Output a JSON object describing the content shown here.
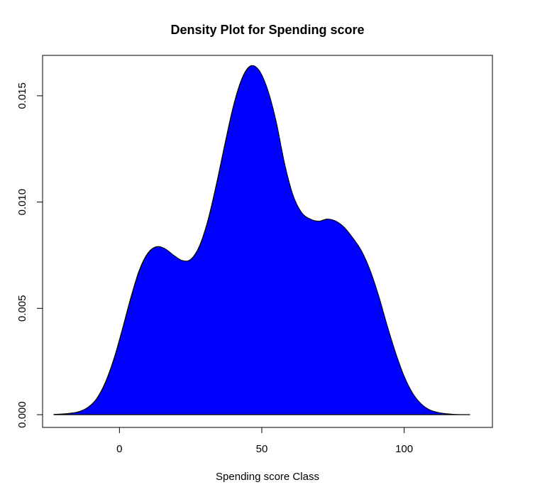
{
  "chart_data": {
    "type": "area",
    "title": "Density Plot for Spending score",
    "xlabel": "Spending score Class",
    "ylabel": "",
    "xlim": [
      -27,
      131
    ],
    "ylim": [
      -0.0006,
      0.0169
    ],
    "x_ticks": [
      0,
      50,
      100
    ],
    "y_ticks": [
      0.0,
      0.005,
      0.01,
      0.015
    ],
    "x_tick_labels": [
      "0",
      "50",
      "100"
    ],
    "y_tick_labels": [
      "0.000",
      "0.005",
      "0.010",
      "0.015"
    ],
    "fill_color": "#0000ff",
    "line_color": "#000000",
    "grid": false,
    "series": [
      {
        "x": [
          -23,
          -20,
          -17,
          -14,
          -11,
          -8,
          -5,
          -2,
          1,
          4,
          7,
          10,
          13,
          16,
          19,
          22,
          25,
          28,
          31,
          34,
          37,
          40,
          43,
          46,
          49,
          52,
          55,
          58,
          61,
          64,
          67,
          70,
          73,
          76,
          79,
          82,
          85,
          88,
          91,
          94,
          97,
          100,
          103,
          106,
          109,
          112,
          115,
          118,
          121,
          123
        ],
        "y": [
          1e-05,
          3e-05,
          7e-05,
          0.00015,
          0.00035,
          0.00075,
          0.0015,
          0.0026,
          0.004,
          0.0055,
          0.0068,
          0.0076,
          0.0079,
          0.0078,
          0.0075,
          0.00725,
          0.0073,
          0.0079,
          0.0091,
          0.0108,
          0.0127,
          0.0145,
          0.0158,
          0.0164,
          0.0162,
          0.0153,
          0.0138,
          0.0118,
          0.0103,
          0.0095,
          0.0092,
          0.0091,
          0.0092,
          0.0091,
          0.0088,
          0.0083,
          0.0077,
          0.0068,
          0.0056,
          0.0042,
          0.0029,
          0.0018,
          0.001,
          0.0005,
          0.00022,
          0.0001,
          4e-05,
          1e-05,
          3e-06,
          1e-06
        ]
      }
    ]
  }
}
